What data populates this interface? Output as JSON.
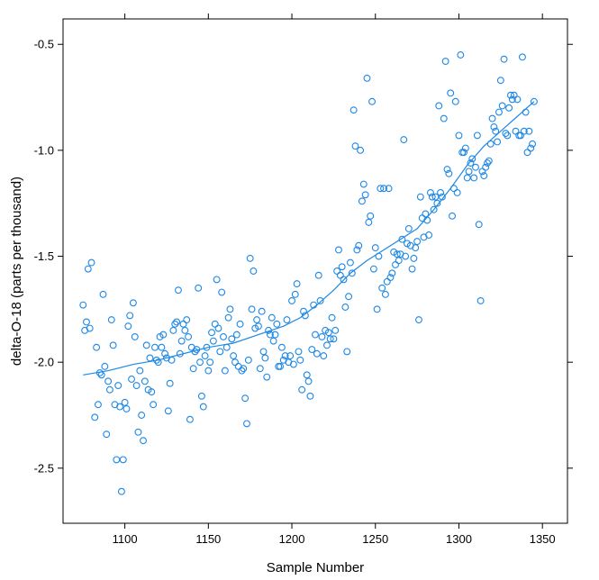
{
  "chart_data": {
    "type": "scatter",
    "title": "",
    "xlabel": "Sample Number",
    "ylabel": "delta-O-18 (parts per thousand)",
    "xlim": [
      1063,
      1365
    ],
    "ylim": [
      -2.76,
      -0.38
    ],
    "x_ticks": [
      1100,
      1150,
      1200,
      1250,
      1300,
      1350
    ],
    "y_ticks": [
      -2.5,
      -2.0,
      -1.5,
      -1.0,
      -0.5
    ],
    "x_tick_labels": [
      "1100",
      "1150",
      "1200",
      "1250",
      "1300",
      "1350"
    ],
    "y_tick_labels": [
      "-2.5",
      "-2.0",
      "-1.5",
      "-1.0",
      "-0.5"
    ],
    "grid": false,
    "color": "#1e88e5",
    "points": [
      [
        1075,
        -1.73
      ],
      [
        1076,
        -1.85
      ],
      [
        1077,
        -1.81
      ],
      [
        1078,
        -1.56
      ],
      [
        1079,
        -1.84
      ],
      [
        1080,
        -1.53
      ],
      [
        1082,
        -2.26
      ],
      [
        1083,
        -1.93
      ],
      [
        1084,
        -2.2
      ],
      [
        1085,
        -2.05
      ],
      [
        1086,
        -2.06
      ],
      [
        1087,
        -1.68
      ],
      [
        1088,
        -2.02
      ],
      [
        1089,
        -2.34
      ],
      [
        1090,
        -2.09
      ],
      [
        1091,
        -2.13
      ],
      [
        1092,
        -1.8
      ],
      [
        1093,
        -1.92
      ],
      [
        1094,
        -2.2
      ],
      [
        1095,
        -2.46
      ],
      [
        1096,
        -2.11
      ],
      [
        1097,
        -2.21
      ],
      [
        1098,
        -2.61
      ],
      [
        1099,
        -2.46
      ],
      [
        1100,
        -2.19
      ],
      [
        1101,
        -2.22
      ],
      [
        1102,
        -1.83
      ],
      [
        1103,
        -1.78
      ],
      [
        1104,
        -2.08
      ],
      [
        1105,
        -1.72
      ],
      [
        1106,
        -1.88
      ],
      [
        1107,
        -2.11
      ],
      [
        1108,
        -2.33
      ],
      [
        1109,
        -2.04
      ],
      [
        1110,
        -2.25
      ],
      [
        1111,
        -2.37
      ],
      [
        1112,
        -2.09
      ],
      [
        1113,
        -1.92
      ],
      [
        1114,
        -2.13
      ],
      [
        1115,
        -1.98
      ],
      [
        1116,
        -2.14
      ],
      [
        1117,
        -2.2
      ],
      [
        1118,
        -1.93
      ],
      [
        1119,
        -1.99
      ],
      [
        1120,
        -2.0
      ],
      [
        1121,
        -1.88
      ],
      [
        1122,
        -1.93
      ],
      [
        1123,
        -1.87
      ],
      [
        1124,
        -1.96
      ],
      [
        1125,
        -1.98
      ],
      [
        1126,
        -2.23
      ],
      [
        1127,
        -2.1
      ],
      [
        1128,
        -1.99
      ],
      [
        1129,
        -1.85
      ],
      [
        1130,
        -1.82
      ],
      [
        1131,
        -1.81
      ],
      [
        1132,
        -1.66
      ],
      [
        1133,
        -1.96
      ],
      [
        1134,
        -1.9
      ],
      [
        1135,
        -1.82
      ],
      [
        1136,
        -1.85
      ],
      [
        1137,
        -1.8
      ],
      [
        1138,
        -1.88
      ],
      [
        1139,
        -2.27
      ],
      [
        1140,
        -1.93
      ],
      [
        1141,
        -2.03
      ],
      [
        1142,
        -1.95
      ],
      [
        1143,
        -1.94
      ],
      [
        1144,
        -1.65
      ],
      [
        1145,
        -2.0
      ],
      [
        1146,
        -2.16
      ],
      [
        1147,
        -2.21
      ],
      [
        1148,
        -1.97
      ],
      [
        1149,
        -1.93
      ],
      [
        1150,
        -2.04
      ],
      [
        1151,
        -2.0
      ],
      [
        1152,
        -1.86
      ],
      [
        1153,
        -1.9
      ],
      [
        1154,
        -1.82
      ],
      [
        1155,
        -1.61
      ],
      [
        1156,
        -1.84
      ],
      [
        1157,
        -1.95
      ],
      [
        1158,
        -1.67
      ],
      [
        1159,
        -1.88
      ],
      [
        1160,
        -2.04
      ],
      [
        1161,
        -1.93
      ],
      [
        1162,
        -1.79
      ],
      [
        1163,
        -1.75
      ],
      [
        1164,
        -1.89
      ],
      [
        1165,
        -1.97
      ],
      [
        1166,
        -2.0
      ],
      [
        1167,
        -1.87
      ],
      [
        1168,
        -2.02
      ],
      [
        1169,
        -1.82
      ],
      [
        1170,
        -2.04
      ],
      [
        1171,
        -2.03
      ],
      [
        1172,
        -2.17
      ],
      [
        1173,
        -2.29
      ],
      [
        1174,
        -1.99
      ],
      [
        1175,
        -1.51
      ],
      [
        1176,
        -1.75
      ],
      [
        1177,
        -1.57
      ],
      [
        1178,
        -1.84
      ],
      [
        1179,
        -1.8
      ],
      [
        1180,
        -1.83
      ],
      [
        1181,
        -2.03
      ],
      [
        1182,
        -1.76
      ],
      [
        1183,
        -1.95
      ],
      [
        1184,
        -1.98
      ],
      [
        1185,
        -2.07
      ],
      [
        1186,
        -1.85
      ],
      [
        1187,
        -1.87
      ],
      [
        1188,
        -1.79
      ],
      [
        1189,
        -1.9
      ],
      [
        1190,
        -1.87
      ],
      [
        1191,
        -1.82
      ],
      [
        1192,
        -2.02
      ],
      [
        1193,
        -2.02
      ],
      [
        1194,
        -1.93
      ],
      [
        1195,
        -1.99
      ],
      [
        1196,
        -1.97
      ],
      [
        1197,
        -1.8
      ],
      [
        1198,
        -2.0
      ],
      [
        1199,
        -1.97
      ],
      [
        1200,
        -1.71
      ],
      [
        1201,
        -2.01
      ],
      [
        1202,
        -1.68
      ],
      [
        1203,
        -1.63
      ],
      [
        1204,
        -1.95
      ],
      [
        1205,
        -1.99
      ],
      [
        1206,
        -2.13
      ],
      [
        1207,
        -1.76
      ],
      [
        1208,
        -1.78
      ],
      [
        1209,
        -2.06
      ],
      [
        1210,
        -2.09
      ],
      [
        1211,
        -2.16
      ],
      [
        1212,
        -1.94
      ],
      [
        1213,
        -1.73
      ],
      [
        1214,
        -1.87
      ],
      [
        1215,
        -1.96
      ],
      [
        1216,
        -1.59
      ],
      [
        1217,
        -1.71
      ],
      [
        1218,
        -1.88
      ],
      [
        1219,
        -1.97
      ],
      [
        1220,
        -1.85
      ],
      [
        1221,
        -1.92
      ],
      [
        1222,
        -1.86
      ],
      [
        1223,
        -1.89
      ],
      [
        1224,
        -1.79
      ],
      [
        1225,
        -1.89
      ],
      [
        1226,
        -1.85
      ],
      [
        1227,
        -1.57
      ],
      [
        1228,
        -1.47
      ],
      [
        1229,
        -1.59
      ],
      [
        1230,
        -1.55
      ],
      [
        1231,
        -1.61
      ],
      [
        1232,
        -1.74
      ],
      [
        1233,
        -1.95
      ],
      [
        1234,
        -1.69
      ],
      [
        1235,
        -1.53
      ],
      [
        1236,
        -1.58
      ],
      [
        1237,
        -0.81
      ],
      [
        1238,
        -0.98
      ],
      [
        1239,
        -1.47
      ],
      [
        1240,
        -1.45
      ],
      [
        1241,
        -1.0
      ],
      [
        1242,
        -1.24
      ],
      [
        1243,
        -1.16
      ],
      [
        1244,
        -1.21
      ],
      [
        1245,
        -0.66
      ],
      [
        1246,
        -1.34
      ],
      [
        1247,
        -1.31
      ],
      [
        1248,
        -0.77
      ],
      [
        1249,
        -1.56
      ],
      [
        1250,
        -1.46
      ],
      [
        1251,
        -1.75
      ],
      [
        1252,
        -1.5
      ],
      [
        1253,
        -1.18
      ],
      [
        1254,
        -1.65
      ],
      [
        1255,
        -1.18
      ],
      [
        1256,
        -1.68
      ],
      [
        1257,
        -1.62
      ],
      [
        1258,
        -1.18
      ],
      [
        1259,
        -1.6
      ],
      [
        1260,
        -1.58
      ],
      [
        1261,
        -1.48
      ],
      [
        1262,
        -1.54
      ],
      [
        1263,
        -1.49
      ],
      [
        1264,
        -1.52
      ],
      [
        1265,
        -1.49
      ],
      [
        1266,
        -1.42
      ],
      [
        1267,
        -0.95
      ],
      [
        1268,
        -1.5
      ],
      [
        1269,
        -1.44
      ],
      [
        1270,
        -1.37
      ],
      [
        1271,
        -1.45
      ],
      [
        1272,
        -1.56
      ],
      [
        1273,
        -1.51
      ],
      [
        1274,
        -1.46
      ],
      [
        1275,
        -1.43
      ],
      [
        1276,
        -1.8
      ],
      [
        1277,
        -1.22
      ],
      [
        1278,
        -1.32
      ],
      [
        1279,
        -1.41
      ],
      [
        1280,
        -1.3
      ],
      [
        1281,
        -1.33
      ],
      [
        1282,
        -1.4
      ],
      [
        1283,
        -1.2
      ],
      [
        1284,
        -1.22
      ],
      [
        1285,
        -1.28
      ],
      [
        1286,
        -1.22
      ],
      [
        1287,
        -1.25
      ],
      [
        1288,
        -0.79
      ],
      [
        1289,
        -1.2
      ],
      [
        1290,
        -1.22
      ],
      [
        1291,
        -0.85
      ],
      [
        1292,
        -0.58
      ],
      [
        1293,
        -1.09
      ],
      [
        1294,
        -1.11
      ],
      [
        1295,
        -0.73
      ],
      [
        1296,
        -1.31
      ],
      [
        1297,
        -1.18
      ],
      [
        1298,
        -0.77
      ],
      [
        1299,
        -1.2
      ],
      [
        1300,
        -0.93
      ],
      [
        1301,
        -0.55
      ],
      [
        1302,
        -1.01
      ],
      [
        1303,
        -1.01
      ],
      [
        1304,
        -0.99
      ],
      [
        1305,
        -1.13
      ],
      [
        1306,
        -1.1
      ],
      [
        1307,
        -1.06
      ],
      [
        1308,
        -1.04
      ],
      [
        1309,
        -1.13
      ],
      [
        1310,
        -1.08
      ],
      [
        1311,
        -0.93
      ],
      [
        1312,
        -1.35
      ],
      [
        1313,
        -1.71
      ],
      [
        1314,
        -1.1
      ],
      [
        1315,
        -1.12
      ],
      [
        1316,
        -1.08
      ],
      [
        1317,
        -1.06
      ],
      [
        1318,
        -1.05
      ],
      [
        1319,
        -0.97
      ],
      [
        1320,
        -0.85
      ],
      [
        1321,
        -0.89
      ],
      [
        1322,
        -0.91
      ],
      [
        1323,
        -0.96
      ],
      [
        1324,
        -0.82
      ],
      [
        1325,
        -0.67
      ],
      [
        1326,
        -0.79
      ],
      [
        1327,
        -0.57
      ],
      [
        1328,
        -0.92
      ],
      [
        1329,
        -0.93
      ],
      [
        1330,
        -0.8
      ],
      [
        1331,
        -0.74
      ],
      [
        1332,
        -0.76
      ],
      [
        1333,
        -0.74
      ],
      [
        1334,
        -0.91
      ],
      [
        1335,
        -0.76
      ],
      [
        1336,
        -0.93
      ],
      [
        1337,
        -0.93
      ],
      [
        1338,
        -0.56
      ],
      [
        1339,
        -0.91
      ],
      [
        1340,
        -0.82
      ],
      [
        1341,
        -1.01
      ],
      [
        1342,
        -0.91
      ],
      [
        1343,
        -0.99
      ],
      [
        1344,
        -0.97
      ],
      [
        1345,
        -0.77
      ]
    ],
    "smooth_fit": [
      [
        1075,
        -2.06
      ],
      [
        1090,
        -2.04
      ],
      [
        1105,
        -2.01
      ],
      [
        1120,
        -1.99
      ],
      [
        1135,
        -1.96
      ],
      [
        1150,
        -1.93
      ],
      [
        1165,
        -1.91
      ],
      [
        1180,
        -1.87
      ],
      [
        1195,
        -1.83
      ],
      [
        1205,
        -1.79
      ],
      [
        1215,
        -1.73
      ],
      [
        1225,
        -1.66
      ],
      [
        1235,
        -1.58
      ],
      [
        1245,
        -1.52
      ],
      [
        1255,
        -1.47
      ],
      [
        1265,
        -1.42
      ],
      [
        1275,
        -1.37
      ],
      [
        1285,
        -1.28
      ],
      [
        1295,
        -1.18
      ],
      [
        1305,
        -1.07
      ],
      [
        1315,
        -0.98
      ],
      [
        1325,
        -0.91
      ],
      [
        1335,
        -0.84
      ],
      [
        1345,
        -0.77
      ]
    ]
  }
}
